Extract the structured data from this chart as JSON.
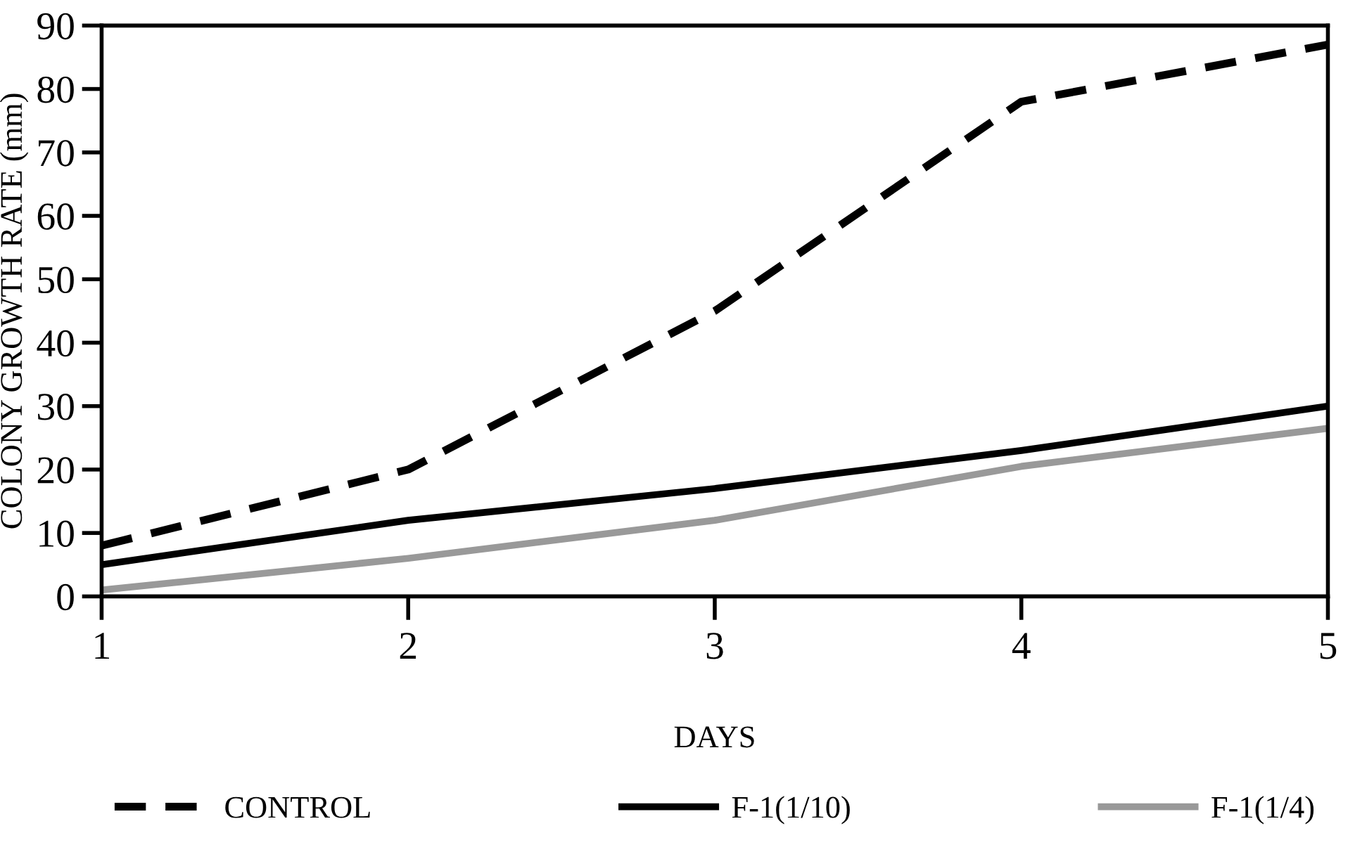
{
  "chart_data": {
    "type": "line",
    "xlabel": "DAYS",
    "ylabel": "COLONY GROWTH RATE (mm)",
    "x": [
      1,
      2,
      3,
      4,
      5
    ],
    "series": [
      {
        "name": "CONTROL",
        "color": "#000000",
        "line_style": "dashed",
        "values": [
          8,
          20,
          45,
          78,
          87
        ]
      },
      {
        "name": "F-1(1/10)",
        "color": "#000000",
        "line_style": "solid",
        "values": [
          5,
          12,
          17,
          23,
          30
        ]
      },
      {
        "name": "F-1(1/4)",
        "color": "#999999",
        "line_style": "solid",
        "values": [
          1,
          6,
          12,
          20.5,
          26.5
        ]
      }
    ],
    "xlim": [
      1,
      5
    ],
    "xticks": [
      1,
      2,
      3,
      4,
      5
    ],
    "ylim": [
      0,
      90
    ],
    "yticks": [
      0,
      10,
      20,
      30,
      40,
      50,
      60,
      70,
      80,
      90
    ],
    "grid": false,
    "legend": "bottom",
    "marker": "none"
  }
}
